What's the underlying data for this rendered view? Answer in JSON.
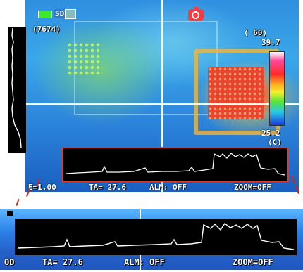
{
  "status": {
    "storage_label": "SD",
    "record_icon": "camera-icon",
    "battery_icon": "battery-icon"
  },
  "readouts": {
    "left_value": "(7674)",
    "top_right_value": "( 60)",
    "max_temp": "39.7",
    "min_temp": "25.2",
    "unit": "(C)"
  },
  "bottom_bar": {
    "emissivity": "E=1.00",
    "ta": "TA= 27.6",
    "alarm": "ALM: OFF",
    "zoom": "ZOOM=OFF"
  },
  "zoom_bar": {
    "od": "OD",
    "ta": "TA= 27.6",
    "alarm": "ALM: OFF",
    "zoom": "ZOOM=OFF"
  },
  "colors": {
    "accent_red": "#e13a2a",
    "osd_text": "#ffffff",
    "graph_bg": "#000000"
  }
}
